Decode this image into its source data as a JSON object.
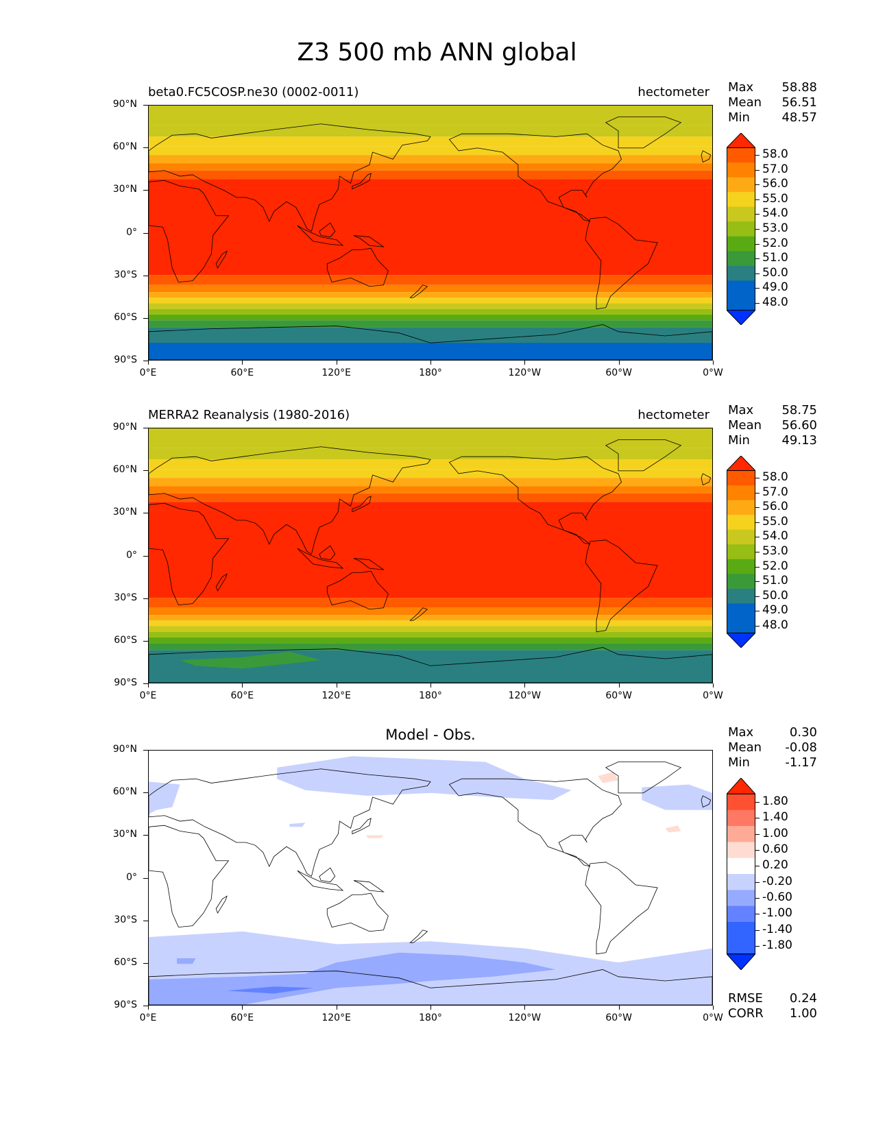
{
  "title": "Z3 500 mb ANN global",
  "panels": [
    {
      "title_left": "beta0.FC5COSP.ne30 (0002-0011)",
      "title_right": "hectometer",
      "stats": {
        "max_label": "Max",
        "max": "58.88",
        "mean_label": "Mean",
        "mean": "56.51",
        "min_label": "Min",
        "min": "48.57"
      },
      "colorbar": {
        "labels": [
          "58.0",
          "57.0",
          "56.0",
          "55.0",
          "54.0",
          "53.0",
          "52.0",
          "51.0",
          "50.0",
          "49.0",
          "48.0"
        ]
      }
    },
    {
      "title_left": "MERRA2 Reanalysis (1980-2016)",
      "title_right": "hectometer",
      "stats": {
        "max_label": "Max",
        "max": "58.75",
        "mean_label": "Mean",
        "mean": "56.60",
        "min_label": "Min",
        "min": "49.13"
      },
      "colorbar": {
        "labels": [
          "58.0",
          "57.0",
          "56.0",
          "55.0",
          "54.0",
          "53.0",
          "52.0",
          "51.0",
          "50.0",
          "49.0",
          "48.0"
        ]
      }
    },
    {
      "title_center": "Model - Obs.",
      "stats": {
        "max_label": "Max",
        "max": "0.30",
        "mean_label": "Mean",
        "mean": "-0.08",
        "min_label": "Min",
        "min": "-1.17"
      },
      "colorbar": {
        "labels": [
          "1.80",
          "1.40",
          "1.00",
          "0.60",
          "0.20",
          "-0.20",
          "-0.60",
          "-1.00",
          "-1.40",
          "-1.80"
        ]
      },
      "metrics": {
        "rmse_label": "RMSE",
        "rmse": "0.24",
        "corr_label": "CORR",
        "corr": "1.00"
      }
    }
  ],
  "axes": {
    "y_ticks": [
      "90°N",
      "60°N",
      "30°N",
      "0°",
      "30°S",
      "60°S",
      "90°S"
    ],
    "x_ticks": [
      "0°E",
      "60°E",
      "120°E",
      "180°",
      "120°W",
      "60°W",
      "0°W"
    ]
  },
  "colors": {
    "z3_levels": [
      "#0032ff",
      "#0064c8",
      "#2a8080",
      "#3a9a3a",
      "#5aaa14",
      "#96be14",
      "#c8c81e",
      "#f5d21e",
      "#ffaa14",
      "#ff8200",
      "#ff5a00",
      "#ff2800"
    ],
    "diff_levels": [
      "#0032ff",
      "#3264ff",
      "#6482ff",
      "#96aaff",
      "#c8d2ff",
      "#ffffff",
      "#ffdcd2",
      "#ffaa96",
      "#ff7864",
      "#ff5032",
      "#ff2800"
    ]
  }
}
